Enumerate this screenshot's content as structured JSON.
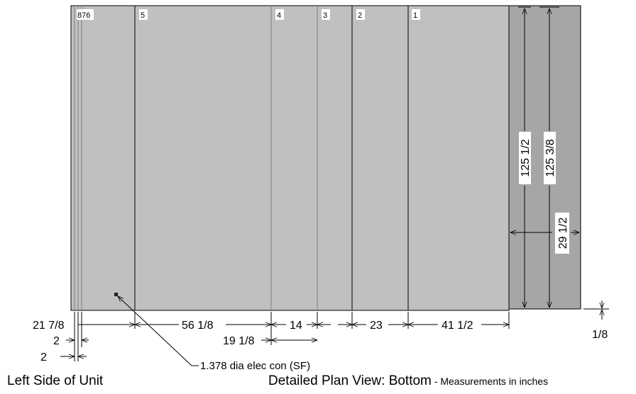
{
  "sections": [
    "8",
    "7",
    "6",
    "5",
    "4",
    "3",
    "2",
    "1"
  ],
  "section_labels": {
    "left_group": "876",
    "s5": "5",
    "s4": "4",
    "s3": "3",
    "s2": "2",
    "s1": "1"
  },
  "dimensions": {
    "d_21_7_8": "21 7/8",
    "d_2_a": "2",
    "d_2_b": "2",
    "d_56_1_8": "56 1/8",
    "d_14": "14",
    "d_23": "23",
    "d_41_1_2": "41 1/2",
    "d_19_1_8": "19 1/8",
    "d_1_8": "1/8",
    "d_125_1_2": "125 1/2",
    "d_125_3_8": "125 3/8",
    "d_29_1_2": "29 1/2"
  },
  "callout": "1.378 dia elec con (SF)",
  "captions": {
    "left": "Left Side of Unit",
    "title": "Detailed Plan View: Bottom",
    "subtitle": " - Measurements in inches"
  },
  "colors": {
    "panel": "#c0c0c0",
    "side_panel": "#a6a6a6",
    "line": "#000000"
  }
}
